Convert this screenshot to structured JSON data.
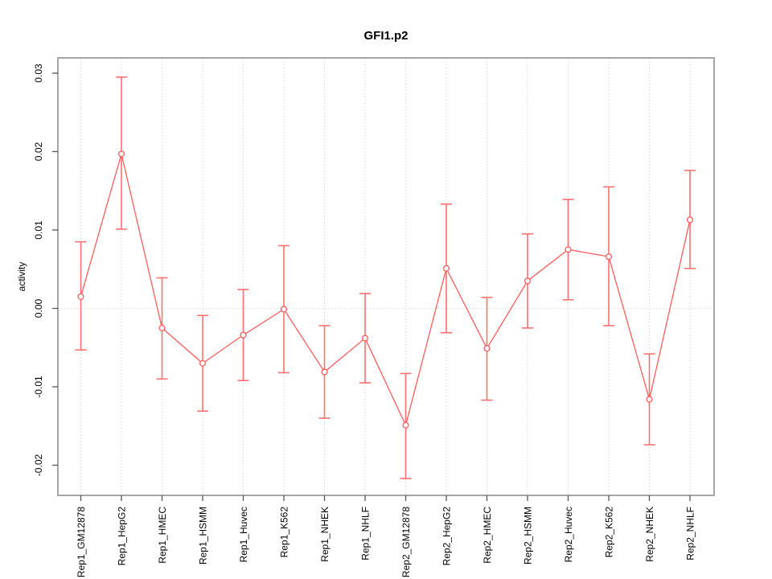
{
  "chart_data": {
    "type": "line",
    "title": "GFI1.p2",
    "xlabel": "",
    "ylabel": "activity",
    "legend": "none",
    "grid": {
      "vertical_at_each_category": true,
      "horizontal_at_zero": true,
      "style": "dotted"
    },
    "marker": "open-circle",
    "error_bars": true,
    "categories": [
      "Rep1_GM12878",
      "Rep1_HepG2",
      "Rep1_HMEC",
      "Rep1_HSMM",
      "Rep1_Huvec",
      "Rep1_K562",
      "Rep1_NHEK",
      "Rep1_NHLF",
      "Rep2_GM12878",
      "Rep2_HepG2",
      "Rep2_HMEC",
      "Rep2_HSMM",
      "Rep2_Huvec",
      "Rep2_K562",
      "Rep2_NHEK",
      "Rep2_NHLF"
    ],
    "series": [
      {
        "name": "activity",
        "values": [
          0.0015,
          0.0197,
          -0.0025,
          -0.007,
          -0.0034,
          -0.0001,
          -0.0081,
          -0.0038,
          -0.0149,
          0.0051,
          -0.0051,
          0.0035,
          0.0075,
          0.0066,
          -0.0116,
          0.0113
        ],
        "error_upper": [
          0.0085,
          0.0295,
          0.0039,
          -0.0009,
          0.0024,
          0.008,
          -0.0022,
          0.0019,
          -0.0083,
          0.0133,
          0.0014,
          0.0095,
          0.0139,
          0.0155,
          -0.0058,
          0.0176
        ],
        "error_lower": [
          -0.0053,
          0.0101,
          -0.009,
          -0.0131,
          -0.0092,
          -0.0082,
          -0.014,
          -0.0095,
          -0.0217,
          -0.0031,
          -0.0117,
          -0.0025,
          0.0011,
          -0.0022,
          -0.0174,
          0.0051
        ]
      }
    ],
    "ylim": [
      -0.0239,
      0.0316
    ],
    "yticks": [
      -0.02,
      -0.01,
      0.0,
      0.01,
      0.02,
      0.03
    ],
    "ytick_labels": [
      "-0.02",
      "-0.01",
      "0.00",
      "0.01",
      "0.02",
      "0.03"
    ],
    "colors": {
      "series": "#ff5c5c",
      "error_bar": "#ff7070",
      "grid": "#dadada",
      "frame": "#888888",
      "tick": "#555555",
      "text": "#000000",
      "background": "#ffffff"
    }
  }
}
